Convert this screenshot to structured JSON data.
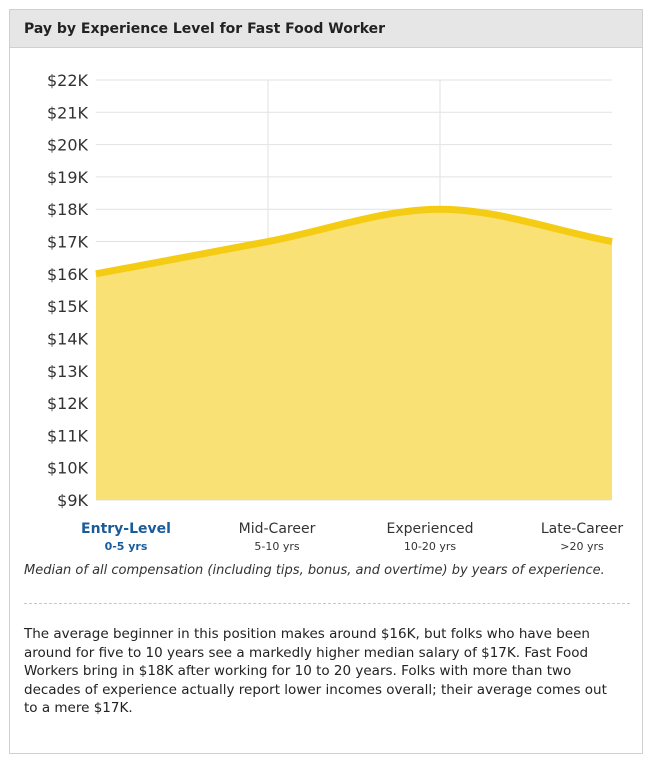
{
  "header": {
    "title": "Pay by Experience Level for Fast Food Worker"
  },
  "chart_data": {
    "type": "area",
    "categories": [
      {
        "label": "Entry-Level",
        "range": "0-5 yrs",
        "active": true
      },
      {
        "label": "Mid-Career",
        "range": "5-10 yrs",
        "active": false
      },
      {
        "label": "Experienced",
        "range": "10-20 yrs",
        "active": false
      },
      {
        "label": "Late-Career",
        "range": ">20 yrs",
        "active": false
      }
    ],
    "values": [
      16000,
      17000,
      18000,
      17000
    ],
    "y_ticks": [
      "$9K",
      "$10K",
      "$11K",
      "$12K",
      "$13K",
      "$14K",
      "$15K",
      "$16K",
      "$17K",
      "$18K",
      "$19K",
      "$20K",
      "$21K",
      "$22K"
    ],
    "ylim": [
      9000,
      22000
    ],
    "grid": true,
    "fill_color": "#fae175",
    "line_color": "#f5cc14",
    "active_color": "#1a5c9a"
  },
  "caption": "Median of all compensation (including tips, bonus, and overtime) by years of experience.",
  "description": "The average beginner in this position makes around $16K, but folks who have been around for five to 10 years see a markedly higher median salary of $17K. Fast Food Workers bring in $18K after working for 10 to 20 years. Folks with more than two decades of experience actually report lower incomes overall; their average comes out to a mere $17K."
}
